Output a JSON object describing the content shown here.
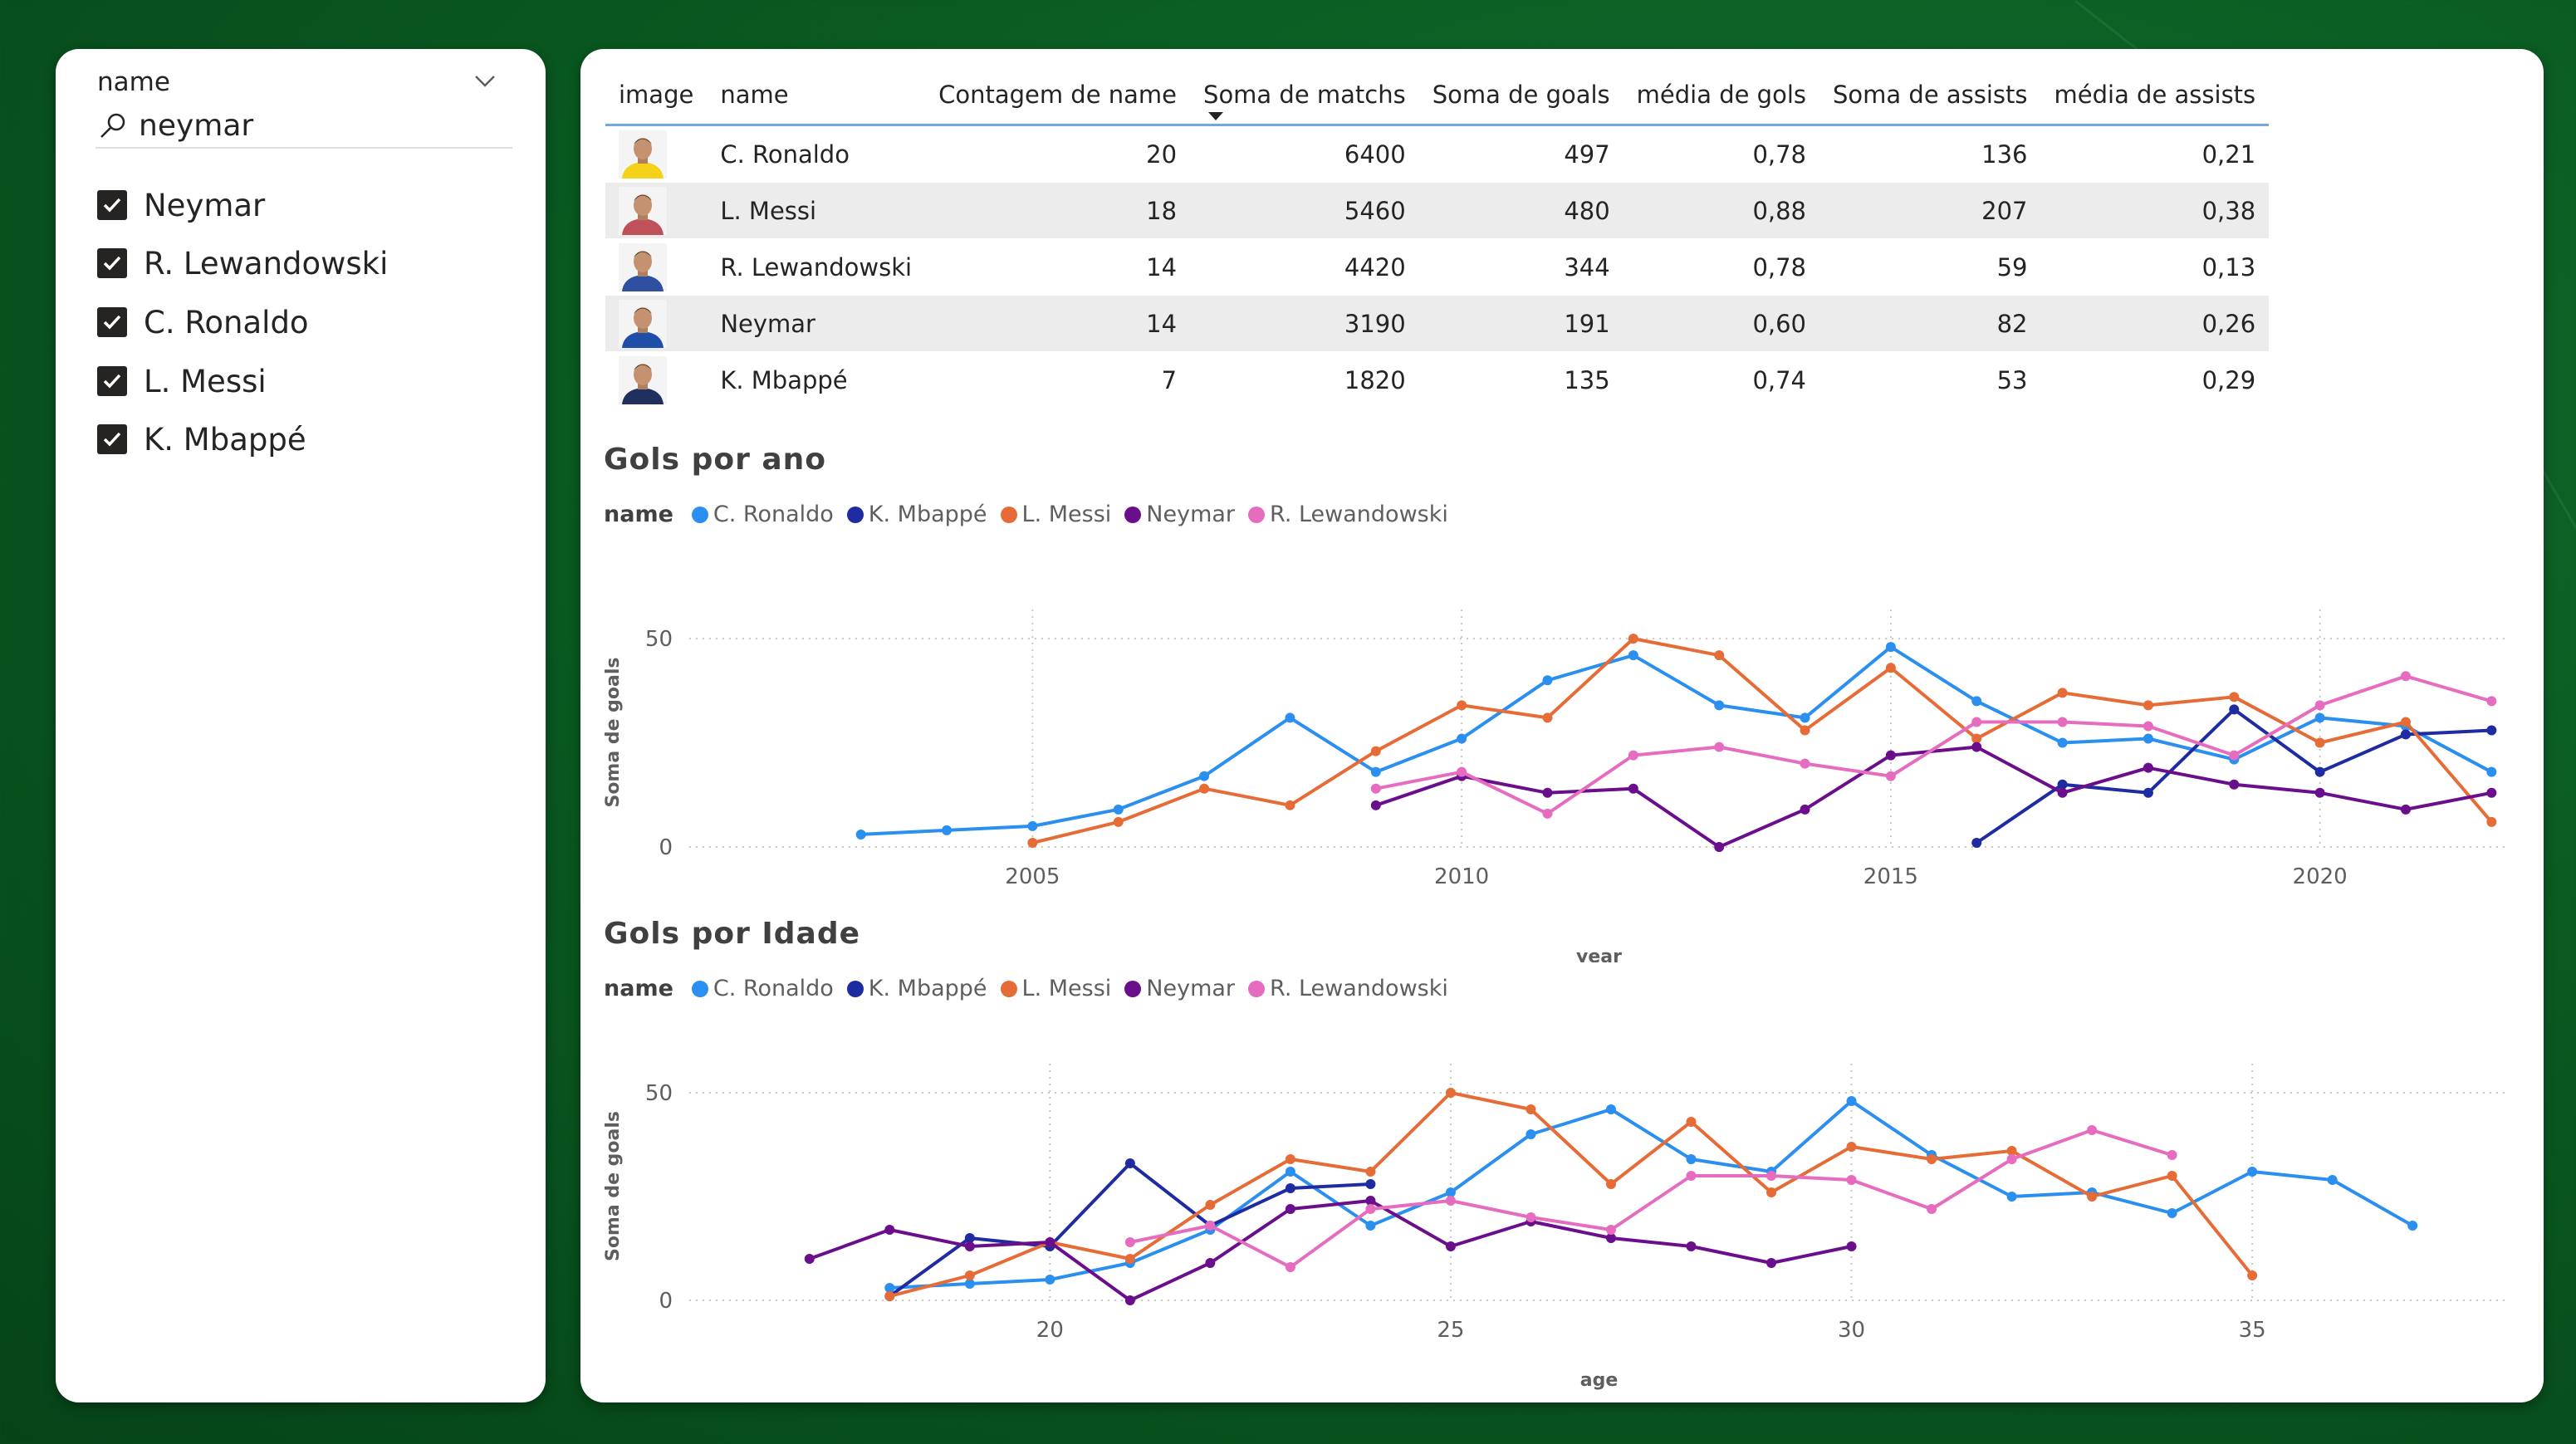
{
  "slicer": {
    "header": "name",
    "search_value": "neymar",
    "items": [
      {
        "label": "Neymar",
        "checked": true
      },
      {
        "label": "R. Lewandowski",
        "checked": true
      },
      {
        "label": "C. Ronaldo",
        "checked": true
      },
      {
        "label": "L. Messi",
        "checked": true
      },
      {
        "label": "K. Mbappé",
        "checked": true
      }
    ]
  },
  "table": {
    "columns": [
      "image",
      "name",
      "Contagem de name",
      "Soma de matchs",
      "Soma de goals",
      "média de gols",
      "Soma de assists",
      "média de assists"
    ],
    "sorted_column": "Soma de matchs",
    "rows": [
      {
        "name": "C. Ronaldo",
        "count": "20",
        "matchs": "6400",
        "goals": "497",
        "media_gols": "0,78",
        "assists": "136",
        "media_assists": "0,21",
        "avatar_jersey": "#f3d219"
      },
      {
        "name": "L. Messi",
        "count": "18",
        "matchs": "5460",
        "goals": "480",
        "media_gols": "0,88",
        "assists": "207",
        "media_assists": "0,38",
        "avatar_jersey": "#c0505a"
      },
      {
        "name": "R. Lewandowski",
        "count": "14",
        "matchs": "4420",
        "goals": "344",
        "media_gols": "0,78",
        "assists": "59",
        "media_assists": "0,13",
        "avatar_jersey": "#2f4fa0"
      },
      {
        "name": "Neymar",
        "count": "14",
        "matchs": "3190",
        "goals": "191",
        "media_gols": "0,60",
        "assists": "82",
        "media_assists": "0,26",
        "avatar_jersey": "#1d4fa8"
      },
      {
        "name": "K. Mbappé",
        "count": "7",
        "matchs": "1820",
        "goals": "135",
        "media_gols": "0,74",
        "assists": "53",
        "media_assists": "0,29",
        "avatar_jersey": "#1f2f5e"
      }
    ]
  },
  "legend_title": "name",
  "colors": {
    "C. Ronaldo": "#2b8ff0",
    "K. Mbappé": "#1f2ba0",
    "L. Messi": "#e66c37",
    "Neymar": "#6b0e8c",
    "R. Lewandowski": "#e66cc0"
  },
  "chart_data": [
    {
      "type": "line",
      "title": "Gols por ano",
      "xlabel": "year",
      "ylabel": "Soma de goals",
      "xlim": [
        2001,
        2022.2
      ],
      "ylim": [
        0,
        55
      ],
      "xticks": [
        2005,
        2010,
        2015,
        2020
      ],
      "yticks": [
        0,
        50
      ],
      "legend": "top-left",
      "series": [
        {
          "name": "C. Ronaldo",
          "points": [
            [
              2003,
              3
            ],
            [
              2004,
              4
            ],
            [
              2005,
              5
            ],
            [
              2006,
              9
            ],
            [
              2007,
              17
            ],
            [
              2008,
              31
            ],
            [
              2009,
              18
            ],
            [
              2010,
              26
            ],
            [
              2011,
              40
            ],
            [
              2012,
              46
            ],
            [
              2013,
              34
            ],
            [
              2014,
              31
            ],
            [
              2015,
              48
            ],
            [
              2016,
              35
            ],
            [
              2017,
              25
            ],
            [
              2018,
              26
            ],
            [
              2019,
              21
            ],
            [
              2020,
              31
            ],
            [
              2021,
              29
            ],
            [
              2022,
              18
            ]
          ]
        },
        {
          "name": "K. Mbappé",
          "points": [
            [
              2016,
              1
            ],
            [
              2017,
              15
            ],
            [
              2018,
              13
            ],
            [
              2019,
              33
            ],
            [
              2020,
              18
            ],
            [
              2021,
              27
            ],
            [
              2022,
              28
            ]
          ]
        },
        {
          "name": "L. Messi",
          "points": [
            [
              2005,
              1
            ],
            [
              2006,
              6
            ],
            [
              2007,
              14
            ],
            [
              2008,
              10
            ],
            [
              2009,
              23
            ],
            [
              2010,
              34
            ],
            [
              2011,
              31
            ],
            [
              2012,
              50
            ],
            [
              2013,
              46
            ],
            [
              2014,
              28
            ],
            [
              2015,
              43
            ],
            [
              2016,
              26
            ],
            [
              2017,
              37
            ],
            [
              2018,
              34
            ],
            [
              2019,
              36
            ],
            [
              2020,
              25
            ],
            [
              2021,
              30
            ],
            [
              2022,
              6
            ]
          ]
        },
        {
          "name": "Neymar",
          "points": [
            [
              2009,
              10
            ],
            [
              2010,
              17
            ],
            [
              2011,
              13
            ],
            [
              2012,
              14
            ],
            [
              2013,
              0
            ],
            [
              2014,
              9
            ],
            [
              2015,
              22
            ],
            [
              2016,
              24
            ],
            [
              2017,
              13
            ],
            [
              2018,
              19
            ],
            [
              2019,
              15
            ],
            [
              2020,
              13
            ],
            [
              2021,
              9
            ],
            [
              2022,
              13
            ]
          ]
        },
        {
          "name": "R. Lewandowski",
          "points": [
            [
              2009,
              14
            ],
            [
              2010,
              18
            ],
            [
              2011,
              8
            ],
            [
              2012,
              22
            ],
            [
              2013,
              24
            ],
            [
              2014,
              20
            ],
            [
              2015,
              17
            ],
            [
              2016,
              30
            ],
            [
              2017,
              30
            ],
            [
              2018,
              29
            ],
            [
              2019,
              22
            ],
            [
              2020,
              34
            ],
            [
              2021,
              41
            ],
            [
              2022,
              35
            ]
          ]
        }
      ]
    },
    {
      "type": "line",
      "title": "Gols por Idade",
      "xlabel": "age",
      "ylabel": "Soma de goals",
      "xlim": [
        15.5,
        38.2
      ],
      "ylim": [
        0,
        55
      ],
      "xticks": [
        20,
        25,
        30,
        35
      ],
      "yticks": [
        0,
        50
      ],
      "legend": "top-left",
      "series": [
        {
          "name": "C. Ronaldo",
          "points": [
            [
              18,
              3
            ],
            [
              19,
              4
            ],
            [
              20,
              5
            ],
            [
              21,
              9
            ],
            [
              22,
              17
            ],
            [
              23,
              31
            ],
            [
              24,
              18
            ],
            [
              25,
              26
            ],
            [
              26,
              40
            ],
            [
              27,
              46
            ],
            [
              28,
              34
            ],
            [
              29,
              31
            ],
            [
              30,
              48
            ],
            [
              31,
              35
            ],
            [
              32,
              25
            ],
            [
              33,
              26
            ],
            [
              34,
              21
            ],
            [
              35,
              31
            ],
            [
              36,
              29
            ],
            [
              37,
              18
            ]
          ]
        },
        {
          "name": "K. Mbappé",
          "points": [
            [
              18,
              1
            ],
            [
              19,
              15
            ],
            [
              20,
              13
            ],
            [
              21,
              33
            ],
            [
              22,
              18
            ],
            [
              23,
              27
            ],
            [
              24,
              28
            ]
          ]
        },
        {
          "name": "L. Messi",
          "points": [
            [
              18,
              1
            ],
            [
              19,
              6
            ],
            [
              20,
              14
            ],
            [
              21,
              10
            ],
            [
              22,
              23
            ],
            [
              23,
              34
            ],
            [
              24,
              31
            ],
            [
              25,
              50
            ],
            [
              26,
              46
            ],
            [
              27,
              28
            ],
            [
              28,
              43
            ],
            [
              29,
              26
            ],
            [
              30,
              37
            ],
            [
              31,
              34
            ],
            [
              32,
              36
            ],
            [
              33,
              25
            ],
            [
              34,
              30
            ],
            [
              35,
              6
            ]
          ]
        },
        {
          "name": "Neymar",
          "points": [
            [
              17,
              10
            ],
            [
              18,
              17
            ],
            [
              19,
              13
            ],
            [
              20,
              14
            ],
            [
              21,
              0
            ],
            [
              22,
              9
            ],
            [
              23,
              22
            ],
            [
              24,
              24
            ],
            [
              25,
              13
            ],
            [
              26,
              19
            ],
            [
              27,
              15
            ],
            [
              28,
              13
            ],
            [
              29,
              9
            ],
            [
              30,
              13
            ]
          ]
        },
        {
          "name": "R. Lewandowski",
          "points": [
            [
              21,
              14
            ],
            [
              22,
              18
            ],
            [
              23,
              8
            ],
            [
              24,
              22
            ],
            [
              25,
              24
            ],
            [
              26,
              20
            ],
            [
              27,
              17
            ],
            [
              28,
              30
            ],
            [
              29,
              30
            ],
            [
              30,
              29
            ],
            [
              31,
              22
            ],
            [
              32,
              34
            ],
            [
              33,
              41
            ],
            [
              34,
              35
            ]
          ]
        }
      ]
    }
  ]
}
